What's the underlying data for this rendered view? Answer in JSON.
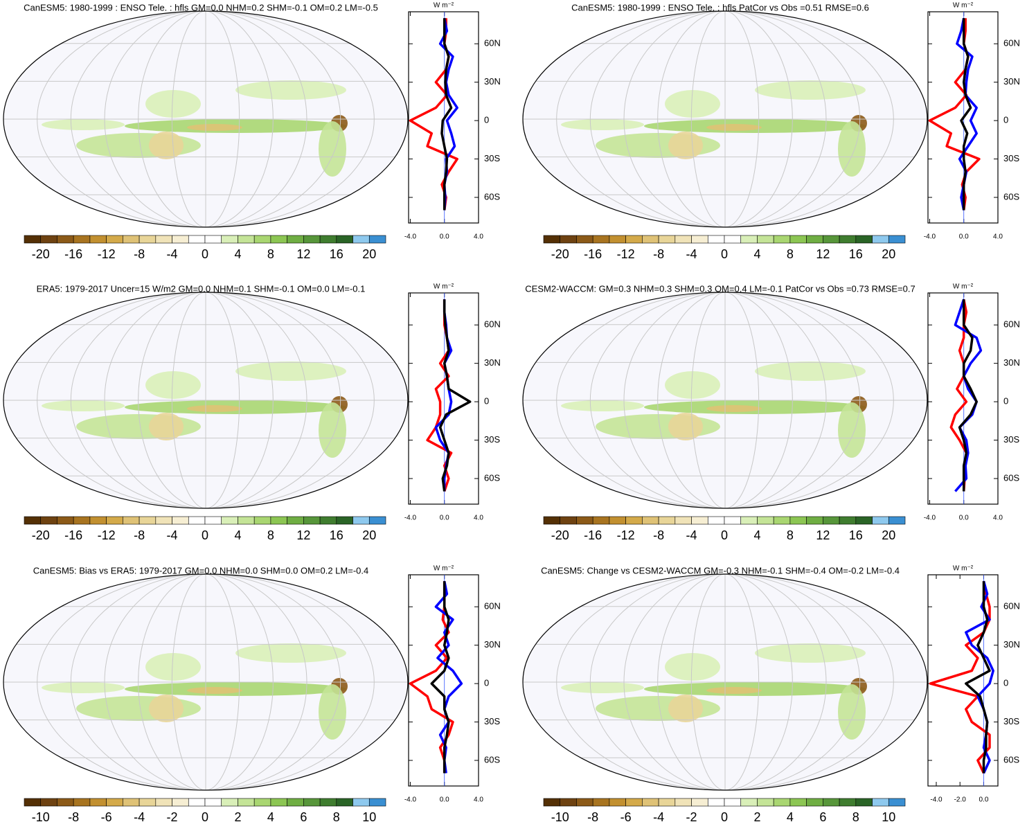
{
  "chart_data": [
    {
      "type": "map",
      "title": "CanESM5: 1980-1999 : ENSO Tele. : hfls GM=0.0 NHM=0.2 SHM=-0.1 OM=0.2 LM=-0.5",
      "colorbar": {
        "colors": [
          "#543005",
          "#6e4211",
          "#8c5a18",
          "#a87420",
          "#c29030",
          "#d4aa4a",
          "#dfc276",
          "#e8d598",
          "#f0e3b8",
          "#f6eed3",
          "#ffffff",
          "#ffffff",
          "#d9efb8",
          "#c4e497",
          "#a9d671",
          "#8cc653",
          "#6fae43",
          "#57963a",
          "#3f7d2f",
          "#2a6426",
          "#8ec9ee",
          "#3a8fd2"
        ],
        "lim": [
          -22,
          22
        ],
        "ticks": [
          -20,
          -16,
          -12,
          -8,
          -4,
          0,
          4,
          8,
          12,
          16,
          20
        ]
      },
      "profile": {
        "type": "line",
        "unit": "W m⁻²",
        "lat": [
          -70,
          -60,
          -50,
          -40,
          -30,
          -20,
          -10,
          0,
          10,
          20,
          30,
          40,
          50,
          60,
          70,
          80
        ],
        "series": [
          {
            "color": "#ff0000",
            "values": [
              0,
              0.2,
              -0.3,
              0.5,
              1.5,
              -2,
              -1.5,
              -4,
              -1,
              0.3,
              -1,
              0.2,
              0.5,
              0,
              0.2,
              0.2
            ]
          },
          {
            "color": "#0000ff",
            "values": [
              0,
              0.1,
              0,
              0.3,
              0.2,
              1.2,
              0.8,
              0.3,
              1.5,
              0.5,
              0.2,
              0.5,
              1,
              -0.5,
              0.3,
              0
            ]
          },
          {
            "color": "#000000",
            "values": [
              0,
              0,
              0,
              0.2,
              0.3,
              0,
              -0.3,
              -0.2,
              0.8,
              0.2,
              0.1,
              0.2,
              0.5,
              0,
              0,
              0
            ]
          }
        ],
        "xlim": [
          -4.2,
          4
        ],
        "ylim": [
          -80,
          85
        ],
        "xticks": [
          {
            "value": -4,
            "label": "-4.0"
          },
          {
            "value": 0,
            "label": "0.0"
          },
          {
            "value": 4,
            "label": "4.0"
          }
        ],
        "yticks": [
          {
            "value": 60,
            "label": "60N"
          },
          {
            "value": 30,
            "label": "30N"
          },
          0,
          {
            "value": -30,
            "label": "30S"
          },
          {
            "value": -60,
            "label": "60S"
          }
        ]
      }
    },
    {
      "type": "map",
      "title": "CanESM5: 1980-1999 : ENSO Tele. : hfls PatCor vs Obs =0.51 RMSE=0.6",
      "colorbar": {
        "colors": [
          "#543005",
          "#6e4211",
          "#8c5a18",
          "#a87420",
          "#c29030",
          "#d4aa4a",
          "#dfc276",
          "#e8d598",
          "#f0e3b8",
          "#f6eed3",
          "#ffffff",
          "#ffffff",
          "#d9efb8",
          "#c4e497",
          "#a9d671",
          "#8cc653",
          "#6fae43",
          "#57963a",
          "#3f7d2f",
          "#2a6426",
          "#8ec9ee",
          "#3a8fd2"
        ],
        "lim": [
          -22,
          22
        ],
        "ticks": [
          -20,
          -16,
          -12,
          -8,
          -4,
          0,
          4,
          8,
          12,
          16,
          20
        ]
      },
      "profile": {
        "type": "line",
        "unit": "W m⁻²",
        "lat": [
          -70,
          -60,
          -50,
          -40,
          -30,
          -20,
          -10,
          0,
          10,
          20,
          30,
          40,
          50,
          60,
          70,
          80
        ],
        "series": [
          {
            "color": "#ff0000",
            "values": [
              0,
              0.2,
              -0.2,
              0.3,
              1.8,
              -2,
              -1.5,
              -4,
              -1,
              0.3,
              -1,
              0.2,
              0.5,
              0,
              0.2,
              0.2
            ]
          },
          {
            "color": "#0000ff",
            "values": [
              0,
              -0.3,
              0,
              0.3,
              -0.5,
              0.5,
              1.5,
              0.8,
              1.5,
              0.2,
              0.3,
              0.5,
              1,
              -0.8,
              -0.3,
              0
            ]
          },
          {
            "color": "#000000",
            "values": [
              0,
              0,
              0,
              0.2,
              0,
              0,
              0.4,
              -0.3,
              0.8,
              0.2,
              0,
              0.2,
              0.5,
              0,
              0,
              0
            ]
          }
        ],
        "xlim": [
          -4.2,
          4
        ],
        "ylim": [
          -80,
          85
        ],
        "xticks": [
          {
            "value": -4,
            "label": "-4.0"
          },
          {
            "value": 0,
            "label": "0.0"
          },
          {
            "value": 4,
            "label": "4.0"
          }
        ],
        "yticks": [
          {
            "value": 60,
            "label": "60N"
          },
          {
            "value": 30,
            "label": "30N"
          },
          0,
          {
            "value": -30,
            "label": "30S"
          },
          {
            "value": -60,
            "label": "60S"
          }
        ]
      }
    },
    {
      "type": "map",
      "title": "ERA5: 1979-2017 Uncer=15 W/m2 GM=0.0 NHM=0.1 SHM=-0.1 OM=0.0 LM=-0.1",
      "colorbar": {
        "colors": [
          "#543005",
          "#6e4211",
          "#8c5a18",
          "#a87420",
          "#c29030",
          "#d4aa4a",
          "#dfc276",
          "#e8d598",
          "#f0e3b8",
          "#f6eed3",
          "#ffffff",
          "#ffffff",
          "#d9efb8",
          "#c4e497",
          "#a9d671",
          "#8cc653",
          "#6fae43",
          "#57963a",
          "#3f7d2f",
          "#2a6426",
          "#8ec9ee",
          "#3a8fd2"
        ],
        "lim": [
          -22,
          22
        ],
        "ticks": [
          -20,
          -16,
          -12,
          -8,
          -4,
          0,
          4,
          8,
          12,
          16,
          20
        ]
      },
      "profile": {
        "type": "line",
        "unit": "W m⁻²",
        "lat": [
          -70,
          -60,
          -50,
          -40,
          -30,
          -20,
          -10,
          0,
          10,
          20,
          30,
          40,
          50,
          60,
          70,
          80
        ],
        "series": [
          {
            "color": "#ff0000",
            "values": [
              0,
              0.5,
              0,
              0.8,
              -2,
              -1,
              -0.5,
              -0.5,
              -1,
              0.5,
              -0.5,
              0.5,
              0.3,
              0,
              0,
              0
            ]
          },
          {
            "color": "#0000ff",
            "values": [
              0,
              0,
              0.2,
              0.5,
              -0.5,
              -1,
              0.5,
              0.8,
              0.5,
              0.3,
              0,
              0.8,
              0.3,
              0.2,
              0,
              0
            ]
          },
          {
            "color": "#000000",
            "values": [
              0,
              -0.2,
              0.3,
              0.5,
              0,
              -0.5,
              0.2,
              3,
              0.5,
              0.3,
              0,
              0.5,
              0.3,
              0.1,
              0,
              0
            ]
          }
        ],
        "xlim": [
          -4.2,
          4
        ],
        "ylim": [
          -80,
          85
        ],
        "xticks": [
          {
            "value": -4,
            "label": "-4.0"
          },
          {
            "value": 0,
            "label": "0.0"
          },
          {
            "value": 4,
            "label": "4.0"
          }
        ],
        "yticks": [
          {
            "value": 60,
            "label": "60N"
          },
          {
            "value": 30,
            "label": "30N"
          },
          0,
          {
            "value": -30,
            "label": "30S"
          },
          {
            "value": -60,
            "label": "60S"
          }
        ]
      }
    },
    {
      "type": "map",
      "title": "CESM2-WACCM: GM=0.3 NHM=0.3 SHM=0.3 OM=0.4 LM=-0.1 PatCor vs Obs =0.73 RMSE=0.7",
      "colorbar": {
        "colors": [
          "#543005",
          "#6e4211",
          "#8c5a18",
          "#a87420",
          "#c29030",
          "#d4aa4a",
          "#dfc276",
          "#e8d598",
          "#f0e3b8",
          "#f6eed3",
          "#ffffff",
          "#ffffff",
          "#d9efb8",
          "#c4e497",
          "#a9d671",
          "#8cc653",
          "#6fae43",
          "#57963a",
          "#3f7d2f",
          "#2a6426",
          "#8ec9ee",
          "#3a8fd2"
        ],
        "lim": [
          -22,
          22
        ],
        "ticks": [
          -20,
          -16,
          -12,
          -8,
          -4,
          0,
          4,
          8,
          12,
          16,
          20
        ]
      },
      "profile": {
        "type": "line",
        "unit": "W m⁻²",
        "lat": [
          -70,
          -60,
          -50,
          -40,
          -30,
          -20,
          -10,
          0,
          10,
          20,
          30,
          40,
          50,
          60,
          70,
          80
        ],
        "series": [
          {
            "color": "#ff0000",
            "values": [
              0,
              0.1,
              0.2,
              0.3,
              -0.5,
              -1.5,
              -1,
              0.3,
              -0.8,
              0,
              0,
              -0.5,
              0,
              0,
              0.3,
              0
            ]
          },
          {
            "color": "#0000ff",
            "values": [
              -1,
              0.3,
              0.2,
              0.5,
              0.3,
              -0.5,
              1,
              1.5,
              0.5,
              0,
              0.8,
              2,
              1.5,
              -1,
              -0.5,
              0
            ]
          },
          {
            "color": "#000000",
            "values": [
              0,
              0,
              0,
              0.3,
              0,
              -0.5,
              0.8,
              1.5,
              0.8,
              0,
              0,
              0.8,
              1,
              0,
              0,
              0
            ]
          }
        ],
        "xlim": [
          -4.2,
          4
        ],
        "ylim": [
          -80,
          85
        ],
        "xticks": [
          {
            "value": -4,
            "label": "-4.0"
          },
          {
            "value": 0,
            "label": "0.0"
          },
          {
            "value": 4,
            "label": "4.0"
          }
        ],
        "yticks": [
          {
            "value": 60,
            "label": "60N"
          },
          {
            "value": 30,
            "label": "30N"
          },
          0,
          {
            "value": -30,
            "label": "30S"
          },
          {
            "value": -60,
            "label": "60S"
          }
        ]
      }
    },
    {
      "type": "map",
      "title": "CanESM5: Bias vs ERA5: 1979-2017 GM=0.0 NHM=0.0 SHM=0.0 OM=0.2 LM=-0.4",
      "colorbar": {
        "colors": [
          "#543005",
          "#6e4211",
          "#8c5a18",
          "#a87420",
          "#c29030",
          "#d4aa4a",
          "#dfc276",
          "#e8d598",
          "#f0e3b8",
          "#f6eed3",
          "#ffffff",
          "#ffffff",
          "#d9efb8",
          "#c4e497",
          "#a9d671",
          "#8cc653",
          "#6fae43",
          "#57963a",
          "#3f7d2f",
          "#2a6426",
          "#8ec9ee",
          "#3a8fd2"
        ],
        "lim": [
          -11,
          11
        ],
        "ticks": [
          -10,
          -8,
          -6,
          -4,
          -2,
          0,
          2,
          4,
          6,
          8,
          10
        ]
      },
      "profile": {
        "type": "line",
        "unit": "W m⁻²",
        "lat": [
          -70,
          -60,
          -50,
          -40,
          -30,
          -20,
          -10,
          0,
          10,
          20,
          30,
          40,
          50,
          60,
          70,
          80
        ],
        "series": [
          {
            "color": "#ff0000",
            "values": [
              0,
              0,
              -0.5,
              0.5,
              1,
              -1.5,
              -2,
              -4,
              -1,
              0.3,
              -1,
              0.5,
              -0.2,
              0,
              0,
              0
            ]
          },
          {
            "color": "#0000ff",
            "values": [
              0.2,
              0,
              0.2,
              -0.5,
              0.5,
              0,
              0.5,
              2,
              1,
              -0.8,
              0.5,
              0,
              1,
              -1,
              0.3,
              0
            ]
          },
          {
            "color": "#000000",
            "values": [
              0,
              0,
              0,
              0.3,
              0.5,
              0,
              0,
              -1.5,
              0,
              0.5,
              0,
              0.3,
              0.5,
              0,
              0,
              0
            ]
          }
        ],
        "xlim": [
          -4.2,
          4
        ],
        "ylim": [
          -80,
          85
        ],
        "xticks": [
          {
            "value": -4,
            "label": "-4.0"
          },
          {
            "value": 0,
            "label": "0.0"
          },
          {
            "value": 4,
            "label": "4.0"
          }
        ],
        "yticks": [
          {
            "value": 60,
            "label": "60N"
          },
          {
            "value": 30,
            "label": "30N"
          },
          0,
          {
            "value": -30,
            "label": "30S"
          },
          {
            "value": -60,
            "label": "60S"
          }
        ]
      }
    },
    {
      "type": "map",
      "title": "CanESM5: Change vs CESM2-WACCM GM=-0.3 NHM=-0.1 SHM=-0.4 OM=-0.2 LM=-0.4",
      "colorbar": {
        "colors": [
          "#543005",
          "#6e4211",
          "#8c5a18",
          "#a87420",
          "#c29030",
          "#d4aa4a",
          "#dfc276",
          "#e8d598",
          "#f0e3b8",
          "#f6eed3",
          "#ffffff",
          "#ffffff",
          "#d9efb8",
          "#c4e497",
          "#a9d671",
          "#8cc653",
          "#6fae43",
          "#57963a",
          "#3f7d2f",
          "#2a6426",
          "#8ec9ee",
          "#3a8fd2"
        ],
        "lim": [
          -11,
          11
        ],
        "ticks": [
          -10,
          -8,
          -6,
          -4,
          -2,
          0,
          2,
          4,
          6,
          8,
          10
        ]
      },
      "profile": {
        "type": "line",
        "unit": "W m⁻²",
        "lat": [
          -70,
          -60,
          -50,
          -40,
          -30,
          -20,
          -10,
          0,
          10,
          20,
          30,
          40,
          50,
          60,
          70,
          80
        ],
        "series": [
          {
            "color": "#ff0000",
            "values": [
              0,
              -0.5,
              0.5,
              0.5,
              -1,
              -1.5,
              -0.5,
              -4.5,
              -1,
              -0.5,
              -1.5,
              0,
              0.5,
              0.5,
              0.2,
              0
            ]
          },
          {
            "color": "#0000ff",
            "values": [
              0,
              0.5,
              0,
              0.2,
              0.3,
              0,
              -0.5,
              0.5,
              0.8,
              0.3,
              -1,
              -1.5,
              0.5,
              -0.2,
              0.3,
              0
            ]
          },
          {
            "color": "#000000",
            "values": [
              0,
              0,
              0.2,
              0.2,
              0.3,
              0,
              -0.3,
              -1.5,
              0.5,
              0,
              -0.5,
              0,
              0.3,
              0,
              0,
              0
            ]
          }
        ],
        "xlim": [
          -4.7,
          1.2
        ],
        "ylim": [
          -80,
          85
        ],
        "xticks": [
          {
            "value": -4,
            "label": "-4.0"
          },
          {
            "value": -2,
            "label": "-2.0"
          },
          {
            "value": 0,
            "label": "0.0"
          }
        ],
        "yticks": [
          {
            "value": 60,
            "label": "60N"
          },
          {
            "value": 30,
            "label": "30N"
          },
          0,
          {
            "value": -30,
            "label": "30S"
          },
          {
            "value": -60,
            "label": "60S"
          }
        ]
      }
    }
  ]
}
